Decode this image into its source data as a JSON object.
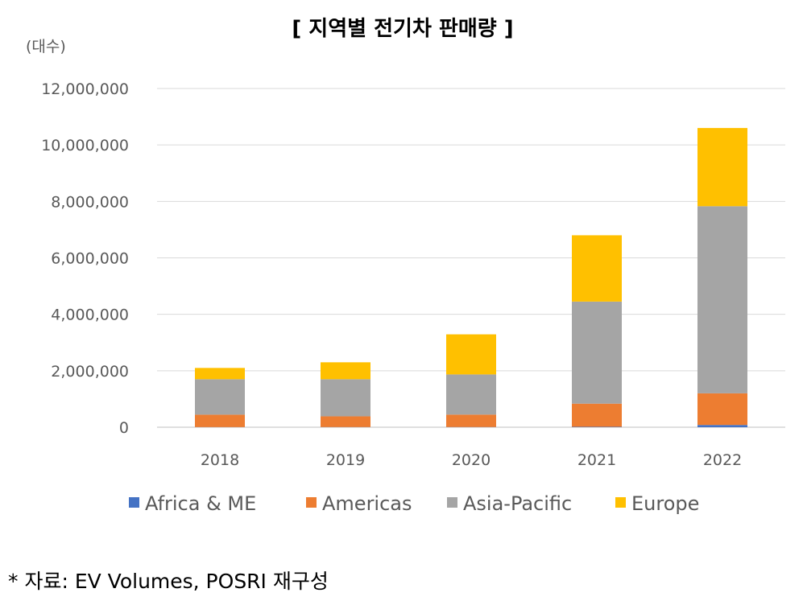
{
  "chart_data": {
    "type": "bar",
    "stacked": true,
    "title": "[ 지역별 전기차 판매량 ]",
    "ylabel": "(대수)",
    "xlabel": "",
    "categories": [
      "2018",
      "2019",
      "2020",
      "2021",
      "2022"
    ],
    "ylim": [
      0,
      12000000
    ],
    "yticks": [
      "0",
      "2,000,000",
      "4,000,000",
      "6,000,000",
      "8,000,000",
      "10,000,000",
      "12,000,000"
    ],
    "grid": true,
    "legend_position": "bottom",
    "series": [
      {
        "name": "Africa & ME",
        "color": "#4472C4",
        "values": [
          5000,
          6000,
          7000,
          15000,
          80000
        ]
      },
      {
        "name": "Americas",
        "color": "#ED7D31",
        "values": [
          440000,
          380000,
          440000,
          820000,
          1120000
        ]
      },
      {
        "name": "Asia-Pacific",
        "color": "#A5A5A5",
        "values": [
          1255000,
          1314000,
          1423000,
          3615000,
          6630000
        ]
      },
      {
        "name": "Europe",
        "color": "#FFC000",
        "values": [
          400000,
          600000,
          1420000,
          2350000,
          2770000
        ]
      }
    ]
  },
  "source_note": "* 자료: EV Volumes, POSRI 재구성"
}
